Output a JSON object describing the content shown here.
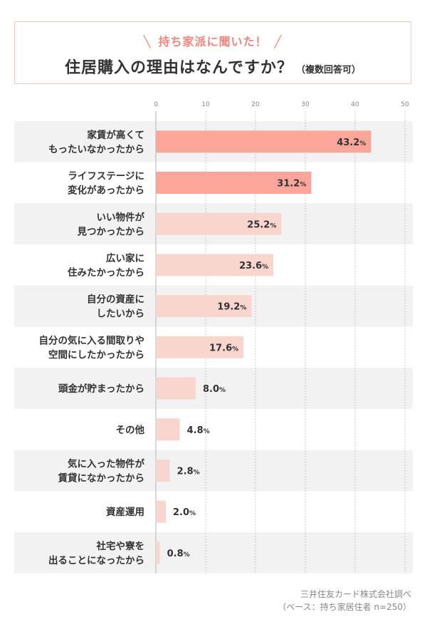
{
  "header": {
    "subtitle": "持ち家派に聞いた！",
    "title": "住居購入の理由はなんですか？",
    "title_note": "（複数回答可）"
  },
  "colors": {
    "bar_highlight": "#fca59a",
    "bar_normal": "#f9d5cf",
    "row_band": "#f2f2f2",
    "accent_text": "#f4857b",
    "border": "#f0c9c4"
  },
  "chart_data": {
    "type": "bar",
    "orientation": "horizontal",
    "categories": [
      [
        "家賃が高くて",
        "もったいなかったから"
      ],
      [
        "ライフステージに",
        "変化があったから"
      ],
      [
        "いい物件が",
        "見つかったから"
      ],
      [
        "広い家に",
        "住みたかったから"
      ],
      [
        "自分の資産に",
        "したいから"
      ],
      [
        "自分の気に入る間取りや",
        "空間にしたかったから"
      ],
      [
        "頭金が貯まったから"
      ],
      [
        "その他"
      ],
      [
        "気に入った物件が",
        "賃貸になかったから"
      ],
      [
        "資産運用"
      ],
      [
        "社宅や寮を",
        "出ることになったから"
      ]
    ],
    "values": [
      43.2,
      31.2,
      25.2,
      23.6,
      19.2,
      17.6,
      8.0,
      4.8,
      2.8,
      2.0,
      0.8
    ],
    "value_labels": [
      "43.2",
      "31.2",
      "25.2",
      "23.6",
      "19.2",
      "17.6",
      "8.0",
      "4.8",
      "2.8",
      "2.0",
      "0.8"
    ],
    "value_unit": "%",
    "highlight": [
      true,
      true,
      false,
      false,
      false,
      false,
      false,
      false,
      false,
      false,
      false
    ],
    "xlim": [
      0,
      50
    ],
    "xticks": [
      0,
      10,
      20,
      30,
      40,
      50
    ],
    "tick_labels": [
      "0",
      "10",
      "20",
      "30",
      "40",
      "50"
    ],
    "grid": true
  },
  "footer": {
    "source": "三井住友カード株式会社調べ",
    "base": "（ベース：持ち家居住者  n=250）"
  }
}
